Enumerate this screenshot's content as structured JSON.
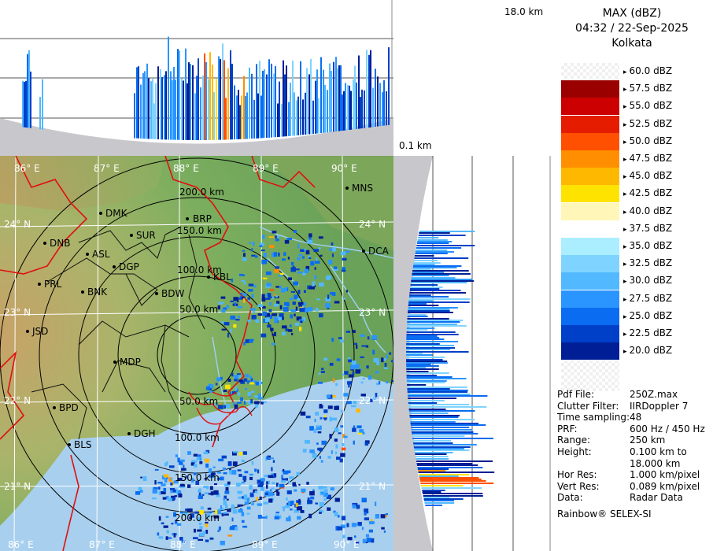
{
  "product": {
    "title": "MAX (dBZ)",
    "datetime": "04:32 / 22-Sep-2025",
    "station": "Kolkata"
  },
  "height_labels": {
    "top": "18.0 km",
    "bottom": "0.1 km"
  },
  "legend": [
    {
      "label": "60.0 dBZ",
      "color": "checker"
    },
    {
      "label": "57.5 dBZ",
      "color": "#9a0000"
    },
    {
      "label": "55.0 dBZ",
      "color": "#cc0000"
    },
    {
      "label": "52.5 dBZ",
      "color": "#e51c00"
    },
    {
      "label": "50.0 dBZ",
      "color": "#ff4f00"
    },
    {
      "label": "47.5 dBZ",
      "color": "#ff8f00"
    },
    {
      "label": "45.0 dBZ",
      "color": "#ffb800"
    },
    {
      "label": "42.5 dBZ",
      "color": "#ffe300"
    },
    {
      "label": "40.0 dBZ",
      "color": "#fff6b8"
    },
    {
      "label": "37.5 dBZ",
      "color": "#ffffff"
    },
    {
      "label": "35.0 dBZ",
      "color": "#aaeeff"
    },
    {
      "label": "32.5 dBZ",
      "color": "#7fd4ff"
    },
    {
      "label": "30.0 dBZ",
      "color": "#52b8ff"
    },
    {
      "label": "27.5 dBZ",
      "color": "#2a94ff"
    },
    {
      "label": "25.0 dBZ",
      "color": "#0a6cf0"
    },
    {
      "label": "22.5 dBZ",
      "color": "#0040c8"
    },
    {
      "label": "20.0 dBZ",
      "color": "#001e96"
    }
  ],
  "info": [
    {
      "key": "Pdf File:",
      "value": "250Z.max"
    },
    {
      "key": "Clutter Filter:",
      "value": "IIRDoppler 7"
    },
    {
      "key": "Time sampling:",
      "value": "48"
    },
    {
      "key": "PRF:",
      "value": "600 Hz / 450 Hz"
    },
    {
      "key": "Range:",
      "value": "250 km"
    },
    {
      "key": "Height:",
      "value": "0.100 km to"
    },
    {
      "key": "",
      "value": "18.000 km"
    },
    {
      "key": "Hor Res:",
      "value": "1.000 km/pixel"
    },
    {
      "key": "Vert Res:",
      "value": "0.089 km/pixel"
    },
    {
      "key": "Data:",
      "value": "Radar Data"
    }
  ],
  "footer": "Rainbow® SELEX-SI",
  "map": {
    "lon_labels": [
      "86° E",
      "87° E",
      "88° E",
      "89° E",
      "90° E"
    ],
    "lat_labels": [
      "24° N",
      "23° N",
      "22° N",
      "21° N"
    ],
    "range_rings": [
      "50.0 km",
      "100.0 km",
      "150.0 km",
      "200.0 km"
    ],
    "cities": [
      {
        "name": "MNS"
      },
      {
        "name": "DMK"
      },
      {
        "name": "BRP"
      },
      {
        "name": "SUR"
      },
      {
        "name": "DNB"
      },
      {
        "name": "ASL"
      },
      {
        "name": "DGP"
      },
      {
        "name": "DCA"
      },
      {
        "name": "KBL"
      },
      {
        "name": "PRL"
      },
      {
        "name": "BNK"
      },
      {
        "name": "BDW"
      },
      {
        "name": "JSD"
      },
      {
        "name": "MDP"
      },
      {
        "name": "BPD"
      },
      {
        "name": "DGH"
      },
      {
        "name": "BLS"
      }
    ]
  }
}
